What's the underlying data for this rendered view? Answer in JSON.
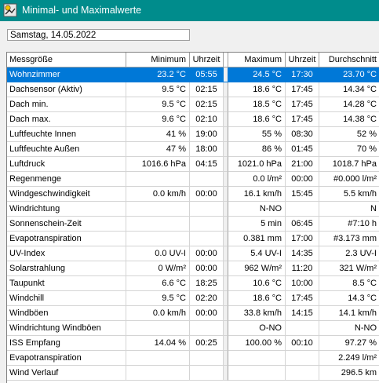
{
  "window": {
    "title": "Minimal- und Maximalwerte"
  },
  "date_field": {
    "value": "Samstag, 14.05.2022"
  },
  "table": {
    "headers": [
      "Messgröße",
      "Minimum",
      "Uhrzeit",
      "Maximum",
      "Uhrzeit",
      "Durchschnitt"
    ],
    "selected_row": 0,
    "rows": [
      [
        "Wohnzimmer",
        "23.2 °C",
        "05:55",
        "24.5 °C",
        "17:30",
        "23.70 °C"
      ],
      [
        "Dachsensor (Aktiv)",
        "9.5 °C",
        "02:15",
        "18.6 °C",
        "17:45",
        "14.34 °C"
      ],
      [
        "Dach min.",
        "9.5 °C",
        "02:15",
        "18.5 °C",
        "17:45",
        "14.28 °C"
      ],
      [
        "Dach max.",
        "9.6 °C",
        "02:10",
        "18.6 °C",
        "17:45",
        "14.38 °C"
      ],
      [
        "Luftfeuchte Innen",
        "41 %",
        "19:00",
        "55 %",
        "08:30",
        "52 %"
      ],
      [
        "Luftfeuchte Außen",
        "47 %",
        "18:00",
        "86 %",
        "01:45",
        "70 %"
      ],
      [
        "Luftdruck",
        "1016.6 hPa",
        "04:15",
        "1021.0 hPa",
        "21:00",
        "1018.7 hPa"
      ],
      [
        "Regenmenge",
        "",
        "",
        "0.0 l/m²",
        "00:00",
        "#0.000 l/m²"
      ],
      [
        "Windgeschwindigkeit",
        "0.0 km/h",
        "00:00",
        "16.1 km/h",
        "15:45",
        "5.5 km/h"
      ],
      [
        "Windrichtung",
        "",
        "",
        "N-NO",
        "",
        "N"
      ],
      [
        "Sonnenschein-Zeit",
        "",
        "",
        "5 min",
        "06:45",
        "#7:10 h"
      ],
      [
        "Evapotranspiration",
        "",
        "",
        "0.381 mm",
        "17:00",
        "#3.173 mm"
      ],
      [
        "UV-Index",
        "0.0 UV-I",
        "00:00",
        "5.4 UV-I",
        "14:35",
        "2.3 UV-I"
      ],
      [
        "Solarstrahlung",
        "0 W/m²",
        "00:00",
        "962 W/m²",
        "11:20",
        "321 W/m²"
      ],
      [
        "Taupunkt",
        "6.6 °C",
        "18:25",
        "10.6 °C",
        "10:00",
        "8.5 °C"
      ],
      [
        "Windchill",
        "9.5 °C",
        "02:20",
        "18.6 °C",
        "17:45",
        "14.3 °C"
      ],
      [
        "Windböen",
        "0.0 km/h",
        "00:00",
        "33.8 km/h",
        "14:15",
        "14.1 km/h"
      ],
      [
        "Windrichtung Windböen",
        "",
        "",
        "O-NO",
        "",
        "N-NO"
      ],
      [
        "ISS Empfang",
        "14.04 %",
        "00:25",
        "100.00 %",
        "00:10",
        "97.27 %"
      ],
      [
        "Evapotranspiration",
        "",
        "",
        "",
        "",
        "2.249 l/m²"
      ],
      [
        "Wind Verlauf",
        "",
        "",
        "",
        "",
        "296.5 km"
      ]
    ]
  }
}
